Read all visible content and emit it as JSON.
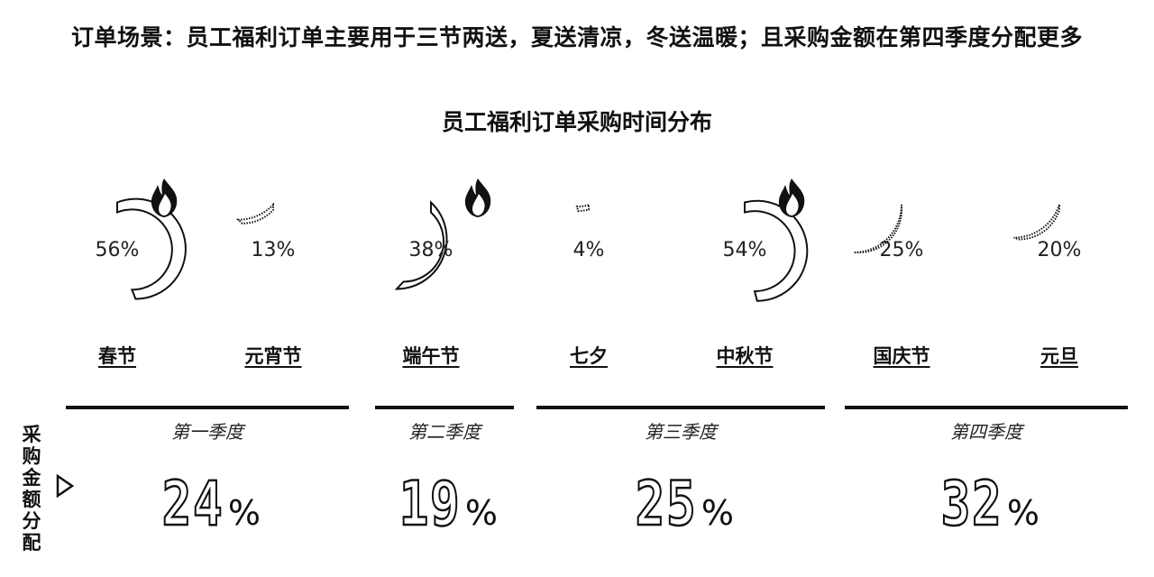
{
  "header": {
    "headline": "订单场景：员工福利订单主要用于三节两送，夏送清凉，冬送温暖；且采购金额在第四季度分配更多"
  },
  "side_label": "采购金额分配",
  "chart_data": [
    {
      "type": "gauge",
      "title": "员工福利订单采购时间分布",
      "categories": [
        "春节",
        "元宵节",
        "端午节",
        "七夕",
        "中秋节",
        "国庆节",
        "元旦"
      ],
      "values": [
        56,
        13,
        38,
        4,
        54,
        25,
        20
      ],
      "value_labels": [
        "56%",
        "13%",
        "38%",
        "4%",
        "54%",
        "25%",
        "20%"
      ],
      "highlighted": [
        "春节",
        "端午节",
        "中秋节"
      ],
      "highlight_icon": "flame-icon",
      "unit": "%"
    },
    {
      "type": "table",
      "categories": [
        "第一季度",
        "第二季度",
        "第三季度",
        "第四季度"
      ],
      "values": [
        24,
        19,
        25,
        32
      ],
      "value_labels": [
        "24",
        "19",
        "25",
        "32"
      ],
      "unit": "%"
    }
  ]
}
